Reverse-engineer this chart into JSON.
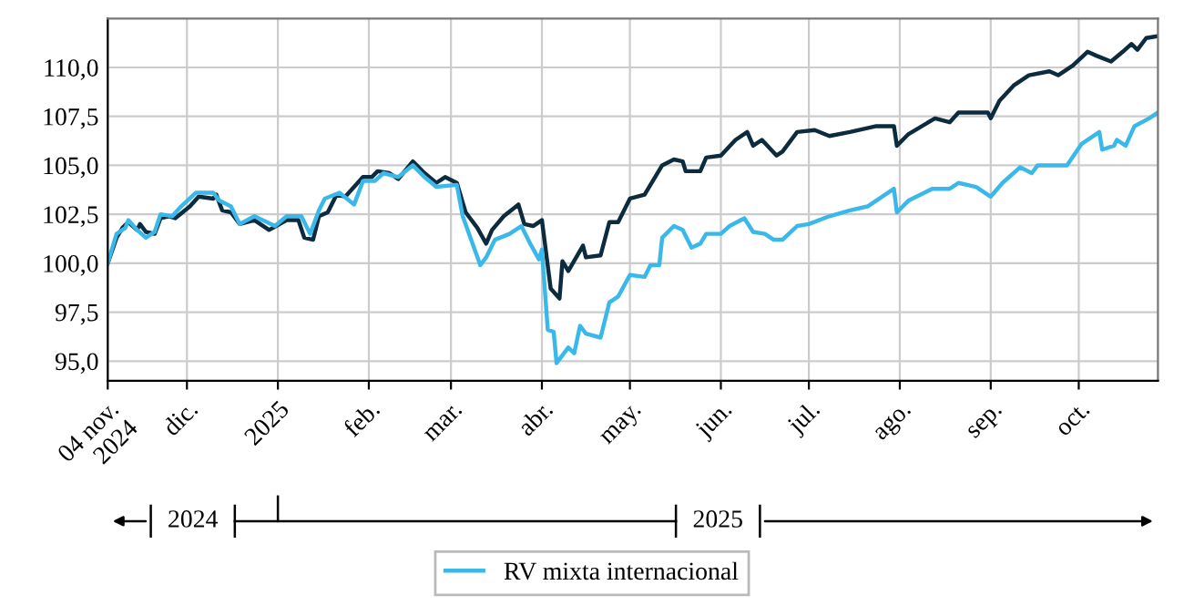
{
  "chart_data": {
    "type": "line",
    "xlim": [
      "2024-11-04",
      "2025-10-28"
    ],
    "xticks": [
      {
        "value": "2024-11-04",
        "label": "04 nov.\n2024"
      },
      {
        "value": "2024-12-01",
        "label": "dic."
      },
      {
        "value": "2025-01-01",
        "label": "2025"
      },
      {
        "value": "2025-02-01",
        "label": "feb."
      },
      {
        "value": "2025-03-01",
        "label": "mar."
      },
      {
        "value": "2025-04-01",
        "label": "abr."
      },
      {
        "value": "2025-05-01",
        "label": "may."
      },
      {
        "value": "2025-06-01",
        "label": "jun."
      },
      {
        "value": "2025-07-01",
        "label": "jul."
      },
      {
        "value": "2025-08-01",
        "label": "ago."
      },
      {
        "value": "2025-09-01",
        "label": "sep."
      },
      {
        "value": "2025-10-01",
        "label": "oct."
      }
    ],
    "ylim": [
      94.0,
      112.5
    ],
    "yticks": [
      {
        "value": 95,
        "label": "95,0"
      },
      {
        "value": 97.5,
        "label": "97,5"
      },
      {
        "value": 100,
        "label": "100,0"
      },
      {
        "value": 102.5,
        "label": "102,5"
      },
      {
        "value": 105,
        "label": "105,0"
      },
      {
        "value": 107.5,
        "label": "107,5"
      },
      {
        "value": 110,
        "label": "110,0"
      }
    ],
    "grid": true,
    "legend": "bottom",
    "marker": "none",
    "line_style": "solid",
    "annotations": [
      "2024",
      "2025"
    ],
    "series": [
      {
        "color": "#0d2b3e",
        "x": [
          "2024-11-04",
          "2024-11-07",
          "2024-11-09",
          "2024-11-11",
          "2024-11-14",
          "2024-11-15",
          "2024-11-17",
          "2024-11-20",
          "2024-11-22",
          "2024-11-25",
          "2024-11-27",
          "2024-12-02",
          "2024-12-05",
          "2024-12-10",
          "2024-12-11",
          "2024-12-13",
          "2024-12-16",
          "2024-12-19",
          "2024-12-24",
          "2024-12-29",
          "2025-01-04",
          "2025-01-08",
          "2025-01-10",
          "2025-01-13",
          "2025-01-15",
          "2025-01-18",
          "2025-01-21",
          "2025-01-24",
          "2025-01-30",
          "2025-02-02",
          "2025-02-04",
          "2025-02-08",
          "2025-02-11",
          "2025-02-16",
          "2025-02-20",
          "2025-02-24",
          "2025-02-27",
          "2025-03-03",
          "2025-03-06",
          "2025-03-10",
          "2025-03-13",
          "2025-03-15",
          "2025-03-19",
          "2025-03-24",
          "2025-03-26",
          "2025-03-29",
          "2025-04-01",
          "2025-04-04",
          "2025-04-07",
          "2025-04-08",
          "2025-04-10",
          "2025-04-15",
          "2025-04-16",
          "2025-04-21",
          "2025-04-24",
          "2025-04-27",
          "2025-05-01",
          "2025-05-06",
          "2025-05-08",
          "2025-05-12",
          "2025-05-16",
          "2025-05-19",
          "2025-05-20",
          "2025-05-25",
          "2025-05-27",
          "2025-06-01",
          "2025-06-06",
          "2025-06-10",
          "2025-06-12",
          "2025-06-15",
          "2025-06-20",
          "2025-06-22",
          "2025-06-27",
          "2025-07-03",
          "2025-07-08",
          "2025-07-15",
          "2025-07-24",
          "2025-07-30",
          "2025-07-31",
          "2025-08-04",
          "2025-08-13",
          "2025-08-18",
          "2025-08-21",
          "2025-08-31",
          "2025-09-01",
          "2025-09-04",
          "2025-09-09",
          "2025-09-14",
          "2025-09-21",
          "2025-09-24",
          "2025-09-29",
          "2025-10-04",
          "2025-10-07",
          "2025-10-12",
          "2025-10-16",
          "2025-10-19",
          "2025-10-21",
          "2025-10-24",
          "2025-10-28"
        ],
        "values": [
          100.0,
          101.3,
          101.8,
          102.1,
          101.7,
          102.0,
          101.6,
          101.5,
          102.3,
          102.4,
          102.3,
          102.9,
          103.4,
          103.3,
          103.5,
          102.7,
          102.6,
          102.0,
          102.2,
          101.7,
          102.2,
          102.2,
          101.3,
          101.2,
          102.4,
          102.6,
          103.5,
          103.4,
          104.4,
          104.4,
          104.7,
          104.6,
          104.3,
          105.2,
          104.6,
          104.1,
          104.4,
          104.1,
          102.6,
          101.8,
          101.0,
          101.7,
          102.4,
          103.0,
          102.0,
          101.9,
          102.2,
          98.7,
          98.2,
          100.1,
          99.6,
          100.9,
          100.3,
          100.4,
          102.1,
          102.1,
          103.3,
          103.5,
          104.0,
          105.0,
          105.3,
          105.2,
          104.7,
          104.7,
          105.4,
          105.5,
          106.3,
          106.7,
          106.0,
          106.3,
          105.5,
          105.7,
          106.7,
          106.8,
          106.5,
          106.7,
          107.0,
          107.0,
          106.0,
          106.6,
          107.4,
          107.2,
          107.7,
          107.7,
          107.4,
          108.3,
          109.1,
          109.6,
          109.8,
          109.6,
          110.1,
          110.8,
          110.6,
          110.3,
          110.8,
          111.2,
          110.9,
          111.5,
          111.6
        ]
      },
      {
        "name": "RV mixta internacional",
        "color": "#3bb8ea",
        "x": [
          "2024-11-04",
          "2024-11-07",
          "2024-11-10",
          "2024-11-11",
          "2024-11-14",
          "2024-11-17",
          "2024-11-20",
          "2024-11-22",
          "2024-11-26",
          "2024-11-29",
          "2024-12-04",
          "2024-12-10",
          "2024-12-12",
          "2024-12-16",
          "2024-12-19",
          "2024-12-24",
          "2024-12-31",
          "2025-01-04",
          "2025-01-09",
          "2025-01-12",
          "2025-01-15",
          "2025-01-17",
          "2025-01-22",
          "2025-01-27",
          "2025-01-30",
          "2025-02-03",
          "2025-02-06",
          "2025-02-11",
          "2025-02-16",
          "2025-02-20",
          "2025-02-24",
          "2025-03-03",
          "2025-03-05",
          "2025-03-11",
          "2025-03-13",
          "2025-03-16",
          "2025-03-21",
          "2025-03-25",
          "2025-03-28",
          "2025-03-31",
          "2025-04-01",
          "2025-04-03",
          "2025-04-05",
          "2025-04-06",
          "2025-04-08",
          "2025-04-10",
          "2025-04-12",
          "2025-04-14",
          "2025-04-16",
          "2025-04-21",
          "2025-04-24",
          "2025-04-27",
          "2025-05-01",
          "2025-05-06",
          "2025-05-08",
          "2025-05-11",
          "2025-05-12",
          "2025-05-16",
          "2025-05-19",
          "2025-05-22",
          "2025-05-25",
          "2025-05-27",
          "2025-06-01",
          "2025-06-04",
          "2025-06-09",
          "2025-06-12",
          "2025-06-16",
          "2025-06-19",
          "2025-06-22",
          "2025-06-27",
          "2025-07-01",
          "2025-07-08",
          "2025-07-15",
          "2025-07-21",
          "2025-07-27",
          "2025-07-30",
          "2025-07-31",
          "2025-08-04",
          "2025-08-12",
          "2025-08-18",
          "2025-08-21",
          "2025-08-27",
          "2025-09-01",
          "2025-09-05",
          "2025-09-11",
          "2025-09-15",
          "2025-09-17",
          "2025-09-27",
          "2025-10-02",
          "2025-10-08",
          "2025-10-09",
          "2025-10-13",
          "2025-10-14",
          "2025-10-17",
          "2025-10-20",
          "2025-10-25",
          "2025-10-28"
        ],
        "values": [
          100.0,
          101.5,
          101.8,
          102.2,
          101.7,
          101.3,
          101.6,
          102.5,
          102.4,
          102.9,
          103.6,
          103.6,
          103.2,
          102.9,
          102.0,
          102.4,
          101.9,
          102.4,
          102.4,
          101.5,
          102.7,
          103.3,
          103.6,
          103.0,
          104.2,
          104.2,
          104.6,
          104.4,
          105.0,
          104.4,
          103.9,
          104.0,
          102.4,
          99.9,
          100.3,
          101.2,
          101.5,
          101.9,
          101.0,
          100.2,
          100.7,
          96.6,
          96.5,
          94.9,
          95.3,
          95.7,
          95.4,
          96.8,
          96.4,
          96.2,
          98.0,
          98.3,
          99.4,
          99.3,
          99.9,
          99.9,
          101.3,
          101.9,
          101.7,
          100.8,
          101.0,
          101.5,
          101.5,
          101.9,
          102.3,
          101.6,
          101.5,
          101.2,
          101.2,
          101.9,
          102.0,
          102.4,
          102.7,
          102.9,
          103.5,
          103.8,
          102.6,
          103.2,
          103.8,
          103.8,
          104.1,
          103.9,
          103.4,
          104.1,
          104.9,
          104.6,
          105.0,
          105.0,
          106.1,
          106.7,
          105.8,
          106.0,
          106.3,
          106.0,
          107.0,
          107.4,
          107.7
        ]
      }
    ]
  }
}
